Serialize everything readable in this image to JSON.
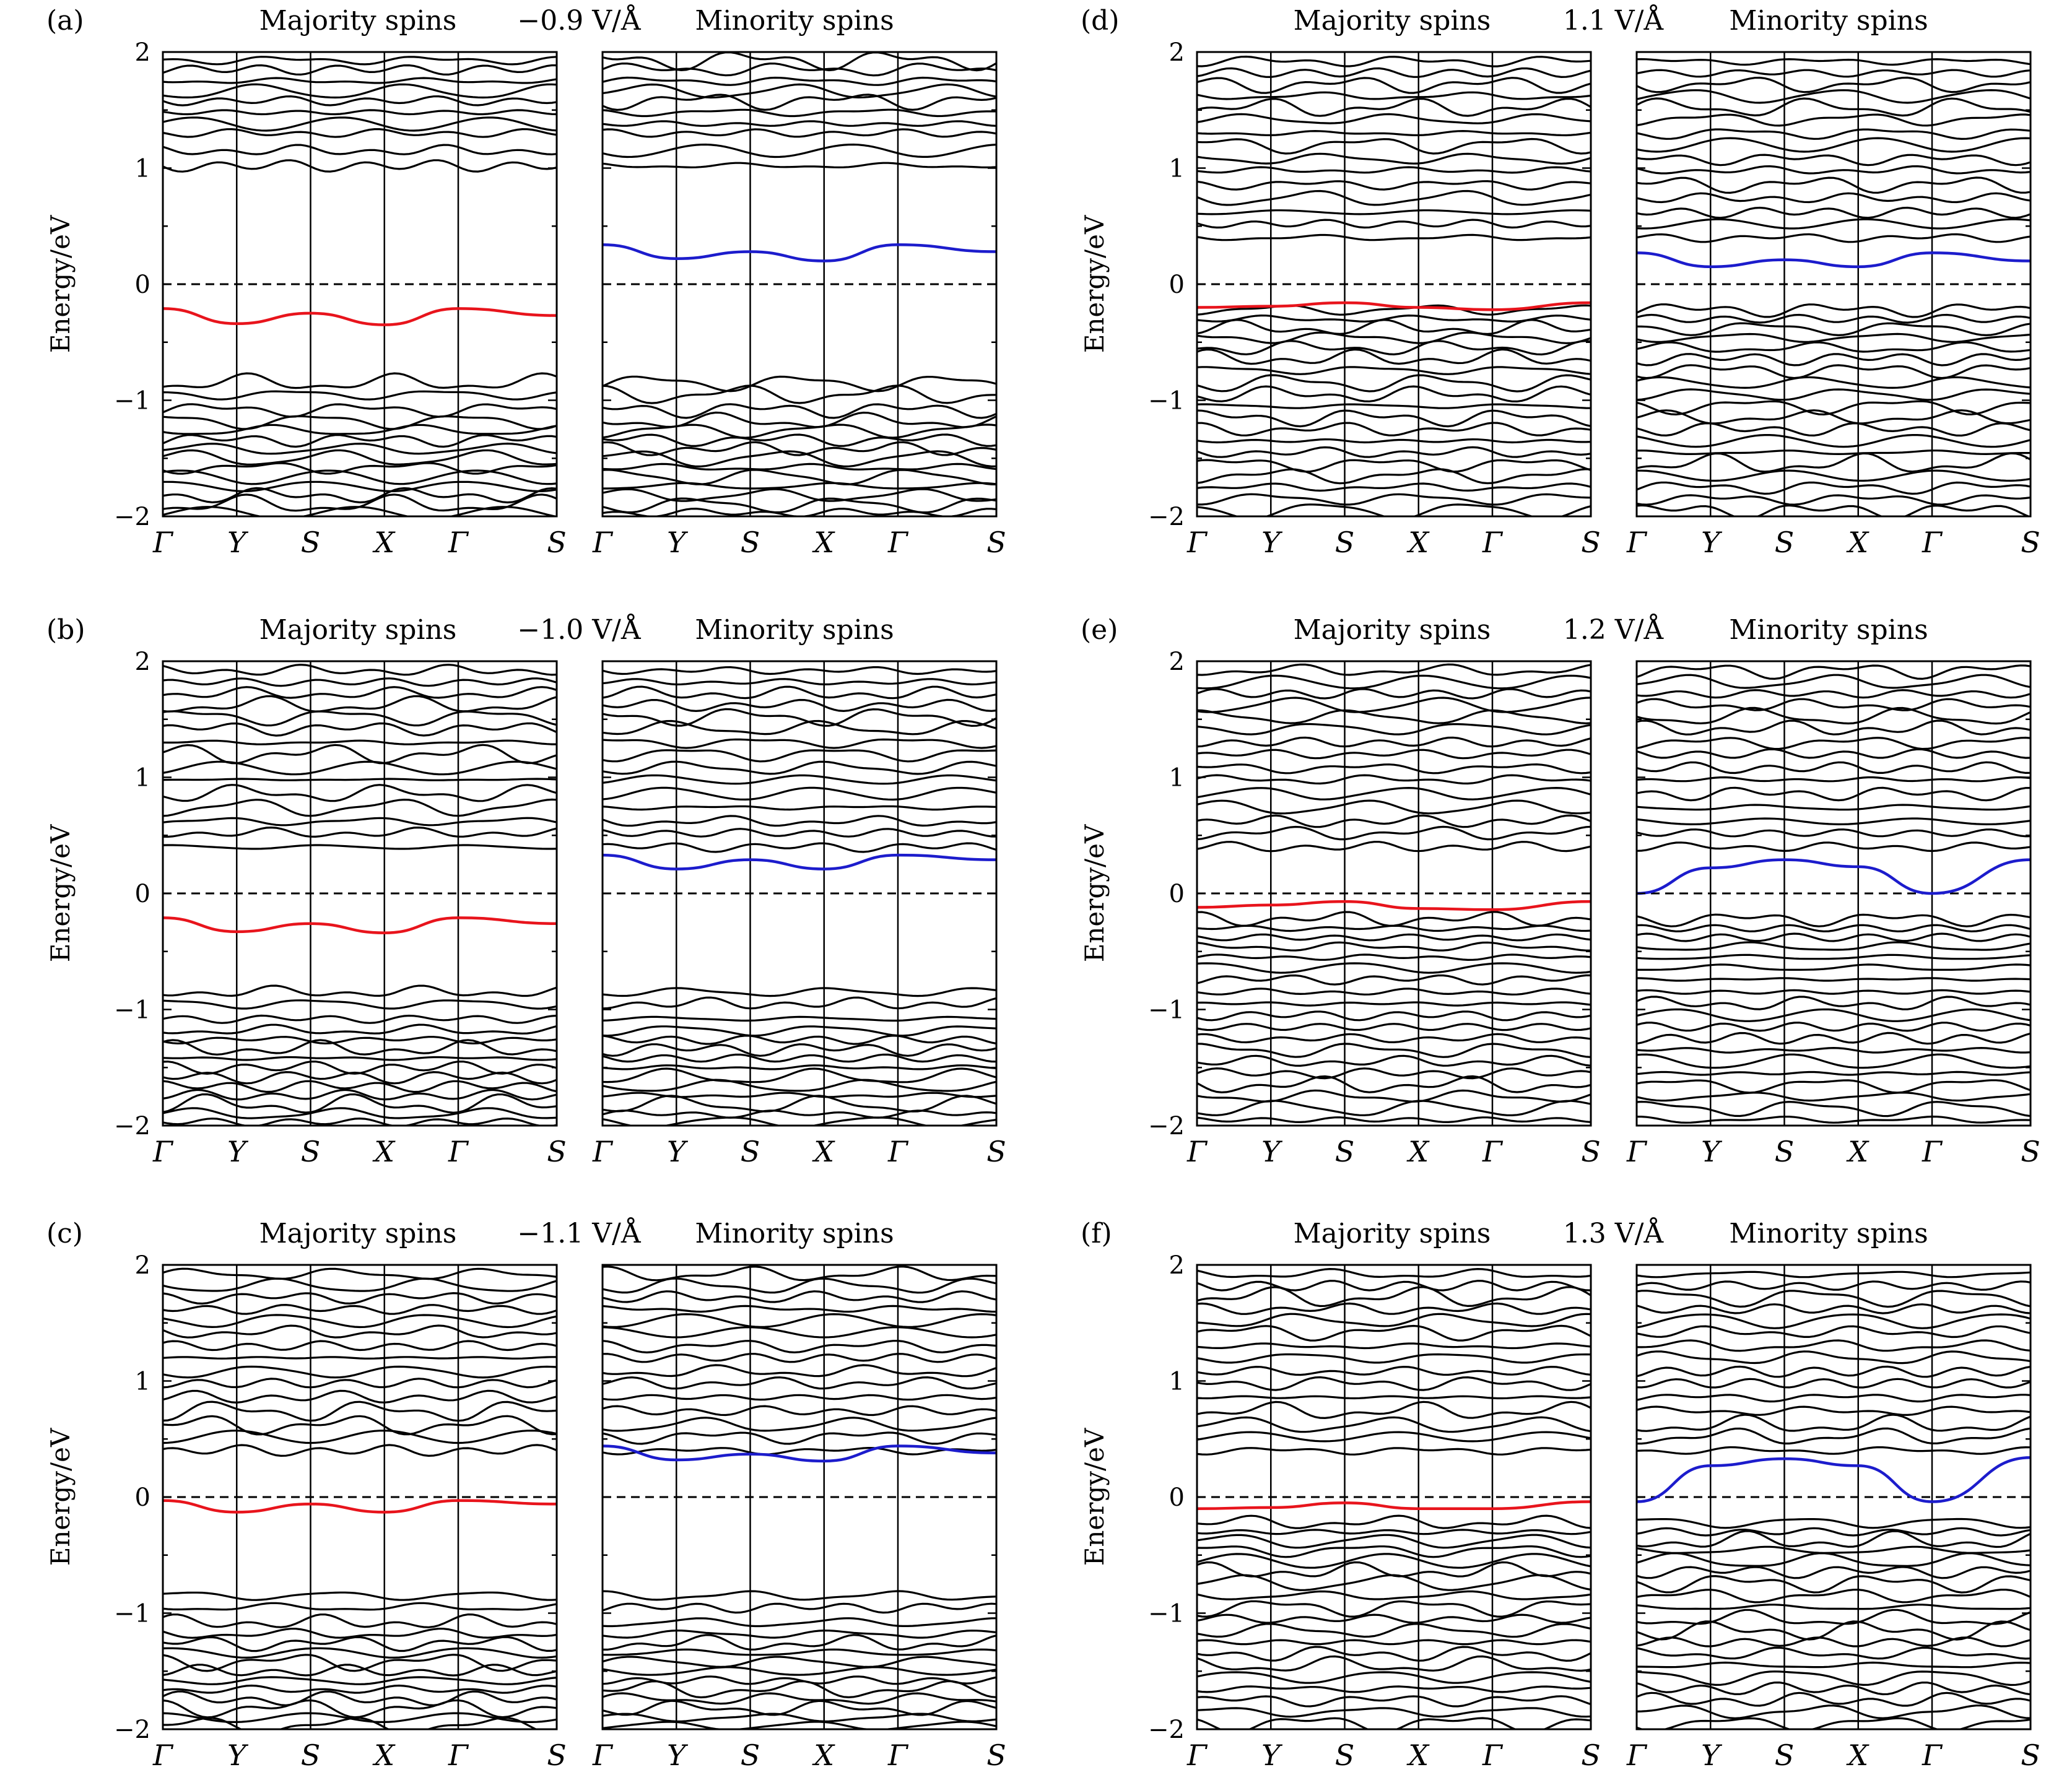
{
  "figure": {
    "panels": [
      {
        "label": "(a)",
        "field": "−0.9 V/Å"
      },
      {
        "label": "(b)",
        "field": "−1.0 V/Å"
      },
      {
        "label": "(c)",
        "field": "−1.1 V/Å"
      },
      {
        "label": "(d)",
        "field": "1.1 V/Å"
      },
      {
        "label": "(e)",
        "field": "1.2 V/Å"
      },
      {
        "label": "(f)",
        "field": "1.3 V/Å"
      }
    ],
    "majority_title": "Majority spins",
    "minority_title": "Minority spins",
    "ylabel": "Energy/eV",
    "yticks": [
      "2",
      "1",
      "0",
      "−1",
      "−2"
    ],
    "kpath": [
      "Γ",
      "Y",
      "S",
      "X",
      "Γ",
      "S"
    ],
    "colors": {
      "spin_up_band": "#e8141c",
      "spin_down_band": "#1c1ccc",
      "bands": "#000000",
      "fermi_level": "#000000"
    }
  },
  "chart_data": [
    {
      "type": "line",
      "panel": "(a)",
      "field": "−0.9 V/Å",
      "xlabel": "",
      "ylabel": "Energy/eV",
      "ylim": [
        -2,
        2
      ],
      "x_ticks": [
        "Γ",
        "Y",
        "S",
        "X",
        "Γ",
        "S"
      ],
      "fermi_level": 0,
      "series": [
        {
          "spin": "majority",
          "color": "#e8141c",
          "k": [
            "Γ",
            "Y",
            "S",
            "X",
            "Γ",
            "S"
          ],
          "energy": [
            -0.21,
            -0.34,
            -0.25,
            -0.35,
            -0.21,
            -0.27
          ]
        },
        {
          "spin": "minority",
          "color": "#1c1ccc",
          "k": [
            "Γ",
            "Y",
            "S",
            "X",
            "Γ",
            "S"
          ],
          "energy": [
            0.34,
            0.22,
            0.28,
            0.2,
            0.34,
            0.28
          ]
        }
      ]
    },
    {
      "type": "line",
      "panel": "(b)",
      "field": "−1.0 V/Å",
      "xlabel": "",
      "ylabel": "Energy/eV",
      "ylim": [
        -2,
        2
      ],
      "x_ticks": [
        "Γ",
        "Y",
        "S",
        "X",
        "Γ",
        "S"
      ],
      "fermi_level": 0,
      "series": [
        {
          "spin": "majority",
          "color": "#e8141c",
          "k": [
            "Γ",
            "Y",
            "S",
            "X",
            "Γ",
            "S"
          ],
          "energy": [
            -0.21,
            -0.33,
            -0.26,
            -0.34,
            -0.21,
            -0.26
          ]
        },
        {
          "spin": "minority",
          "color": "#1c1ccc",
          "k": [
            "Γ",
            "Y",
            "S",
            "X",
            "Γ",
            "S"
          ],
          "energy": [
            0.33,
            0.21,
            0.29,
            0.21,
            0.33,
            0.29
          ]
        }
      ]
    },
    {
      "type": "line",
      "panel": "(c)",
      "field": "−1.1 V/Å",
      "xlabel": "",
      "ylabel": "Energy/eV",
      "ylim": [
        -2,
        2
      ],
      "x_ticks": [
        "Γ",
        "Y",
        "S",
        "X",
        "Γ",
        "S"
      ],
      "fermi_level": 0,
      "series": [
        {
          "spin": "majority",
          "color": "#e8141c",
          "k": [
            "Γ",
            "Y",
            "S",
            "X",
            "Γ",
            "S"
          ],
          "energy": [
            -0.03,
            -0.13,
            -0.06,
            -0.13,
            -0.03,
            -0.06
          ]
        },
        {
          "spin": "minority",
          "color": "#1c1ccc",
          "k": [
            "Γ",
            "Y",
            "S",
            "X",
            "Γ",
            "S"
          ],
          "energy": [
            0.44,
            0.32,
            0.37,
            0.31,
            0.44,
            0.38
          ]
        }
      ]
    },
    {
      "type": "line",
      "panel": "(d)",
      "field": "1.1 V/Å",
      "xlabel": "",
      "ylabel": "Energy/eV",
      "ylim": [
        -2,
        2
      ],
      "x_ticks": [
        "Γ",
        "Y",
        "S",
        "X",
        "Γ",
        "S"
      ],
      "fermi_level": 0,
      "series": [
        {
          "spin": "majority",
          "color": "#e8141c",
          "k": [
            "Γ",
            "Y",
            "S",
            "X",
            "Γ",
            "S"
          ],
          "energy": [
            -0.2,
            -0.19,
            -0.16,
            -0.2,
            -0.22,
            -0.16
          ]
        },
        {
          "spin": "minority",
          "color": "#1c1ccc",
          "k": [
            "Γ",
            "Y",
            "S",
            "X",
            "Γ",
            "S"
          ],
          "energy": [
            0.27,
            0.15,
            0.21,
            0.15,
            0.27,
            0.2
          ]
        }
      ]
    },
    {
      "type": "line",
      "panel": "(e)",
      "field": "1.2 V/Å",
      "xlabel": "",
      "ylabel": "Energy/eV",
      "ylim": [
        -2,
        2
      ],
      "x_ticks": [
        "Γ",
        "Y",
        "S",
        "X",
        "Γ",
        "S"
      ],
      "fermi_level": 0,
      "series": [
        {
          "spin": "majority",
          "color": "#e8141c",
          "k": [
            "Γ",
            "Y",
            "S",
            "X",
            "Γ",
            "S"
          ],
          "energy": [
            -0.12,
            -0.1,
            -0.07,
            -0.13,
            -0.14,
            -0.07
          ]
        },
        {
          "spin": "minority",
          "color": "#1c1ccc",
          "k": [
            "Γ",
            "Y",
            "S",
            "X",
            "Γ",
            "S"
          ],
          "energy": [
            0.0,
            0.22,
            0.29,
            0.23,
            0.0,
            0.29
          ]
        }
      ]
    },
    {
      "type": "line",
      "panel": "(f)",
      "field": "1.3 V/Å",
      "xlabel": "",
      "ylabel": "Energy/eV",
      "ylim": [
        -2,
        2
      ],
      "x_ticks": [
        "Γ",
        "Y",
        "S",
        "X",
        "Γ",
        "S"
      ],
      "fermi_level": 0,
      "series": [
        {
          "spin": "majority",
          "color": "#e8141c",
          "k": [
            "Γ",
            "Y",
            "S",
            "X",
            "Γ",
            "S"
          ],
          "energy": [
            -0.1,
            -0.09,
            -0.05,
            -0.1,
            -0.1,
            -0.04
          ]
        },
        {
          "spin": "minority",
          "color": "#1c1ccc",
          "k": [
            "Γ",
            "Y",
            "S",
            "X",
            "Γ",
            "S"
          ],
          "energy": [
            -0.04,
            0.27,
            0.33,
            0.27,
            -0.04,
            0.34
          ]
        }
      ]
    }
  ]
}
